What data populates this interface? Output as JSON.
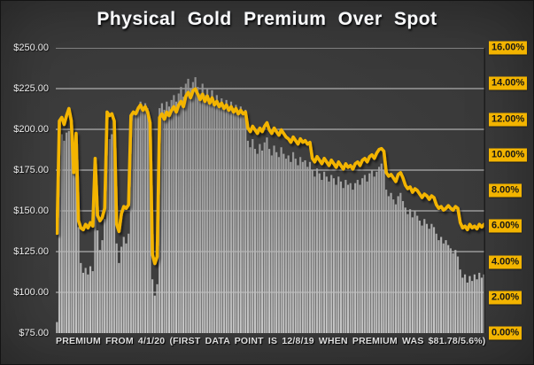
{
  "title": "Physical Gold Premium Over Spot",
  "caption": "PREMIUM FROM 4/1/20 (FIRST DATA POINT IS 12/8/19 WHEN PREMIUM WAS $81.78/5.6%)",
  "colors": {
    "line": "#F3B400",
    "label_chip_bg": "#F3B400",
    "label_chip_text": "#161616",
    "bar_top": "#8f8f8f",
    "bar_mid": "#adadad",
    "bar_bottom": "#cbcbcb",
    "gridline": "#e3e3e3",
    "axis_text": "#ececec",
    "title_text": "#fafafa",
    "right_axis_border": "#1c1c1c",
    "background": "#383838"
  },
  "left_axis": {
    "labels": [
      "$250.00",
      "$225.00",
      "$200.00",
      "$175.00",
      "$150.00",
      "$125.00",
      "$100.00",
      "$75.00"
    ],
    "min": 75,
    "max": 250,
    "step": 25
  },
  "right_axis": {
    "labels": [
      "16.00%",
      "14.00%",
      "12.00%",
      "10.00%",
      "8.00%",
      "6.00%",
      "4.00%",
      "2.00%",
      "0.00%"
    ],
    "min": 0,
    "max": 16,
    "step": 2
  },
  "chart_data": {
    "type": "combo",
    "title": "Physical Gold Premium Over Spot",
    "x_note": "daily observations from 4/1/20; first point is 12/8/19 ($81.78 / 5.6%)",
    "grid": true,
    "legend": "none",
    "series": [
      {
        "name": "premium_dollars",
        "type": "bar",
        "axis": "left",
        "axis_range": [
          75,
          250
        ],
        "values": [
          81.78,
          195,
          197,
          193,
          198,
          199,
          196,
          172,
          190,
          140,
          118,
          112,
          115,
          111,
          116,
          113,
          165,
          138,
          126,
          132,
          145,
          196,
          194,
          197,
          192,
          130,
          118,
          128,
          134,
          130,
          136,
          207,
          211,
          209,
          214,
          217,
          212,
          216,
          213,
          205,
          108,
          98,
          105,
          213,
          216,
          212,
          217,
          214,
          218,
          221,
          217,
          222,
          226,
          220,
          228,
          231,
          225,
          229,
          232,
          226,
          222,
          228,
          221,
          225,
          219,
          224,
          217,
          221,
          215,
          219,
          214,
          218,
          213,
          217,
          212,
          215,
          211,
          214,
          210,
          212,
          193,
          189,
          194,
          188,
          185,
          191,
          187,
          192,
          195,
          188,
          184,
          190,
          186,
          183,
          189,
          185,
          182,
          184,
          180,
          186,
          182,
          178,
          183,
          180,
          181,
          177,
          180,
          175,
          171,
          176,
          173,
          169,
          174,
          171,
          168,
          172,
          170,
          166,
          171,
          168,
          164,
          169,
          166,
          167,
          163,
          167,
          169,
          166,
          170,
          172,
          168,
          173,
          175,
          171,
          174,
          177,
          179,
          175,
          163,
          159,
          161,
          157,
          154,
          159,
          161,
          156,
          152,
          148,
          151,
          146,
          150,
          147,
          144,
          141,
          145,
          142,
          139,
          142,
          140,
          136,
          132,
          134,
          130,
          132,
          129,
          127,
          124,
          126,
          122,
          114,
          109,
          111,
          106,
          110,
          107,
          111,
          108,
          112,
          109,
          111
        ]
      },
      {
        "name": "premium_percent",
        "type": "line",
        "axis": "right",
        "axis_range": [
          0,
          16
        ],
        "values": [
          5.6,
          11.9,
          12.1,
          11.7,
          12.2,
          12.6,
          11.9,
          9.0,
          11.2,
          6.3,
          5.9,
          5.8,
          6.1,
          5.9,
          6.2,
          6.0,
          9.8,
          6.6,
          6.3,
          6.5,
          7.0,
          12.4,
          12.2,
          12.3,
          11.9,
          6.1,
          5.7,
          6.7,
          7.1,
          7.0,
          7.2,
          12.2,
          12.4,
          12.3,
          12.6,
          12.8,
          12.5,
          12.7,
          12.4,
          11.8,
          4.4,
          3.9,
          4.3,
          12.1,
          12.3,
          12.0,
          12.4,
          12.2,
          12.5,
          12.7,
          12.4,
          12.8,
          13.0,
          12.7,
          13.3,
          13.5,
          13.2,
          13.6,
          13.7,
          13.4,
          13.1,
          13.4,
          13.0,
          13.3,
          12.9,
          13.2,
          12.8,
          13.0,
          12.7,
          12.9,
          12.6,
          12.8,
          12.5,
          12.7,
          12.4,
          12.6,
          12.3,
          12.5,
          12.3,
          12.4,
          11.5,
          11.3,
          11.6,
          11.4,
          11.2,
          11.5,
          11.3,
          11.6,
          11.8,
          11.4,
          11.2,
          11.5,
          11.3,
          11.1,
          11.4,
          11.2,
          11.0,
          10.9,
          10.7,
          11.0,
          10.8,
          10.6,
          10.9,
          10.7,
          10.8,
          10.6,
          10.7,
          9.8,
          9.6,
          9.9,
          9.7,
          9.5,
          9.8,
          9.6,
          9.4,
          9.7,
          9.5,
          9.3,
          9.6,
          9.4,
          9.2,
          9.5,
          9.3,
          9.4,
          9.2,
          9.5,
          9.6,
          9.4,
          9.7,
          9.8,
          9.6,
          9.9,
          10.0,
          9.8,
          10.1,
          10.3,
          10.35,
          10.2,
          9.0,
          8.8,
          8.9,
          8.7,
          8.5,
          8.9,
          9.0,
          8.7,
          8.3,
          8.1,
          8.2,
          7.9,
          8.1,
          8.0,
          7.8,
          7.6,
          7.8,
          7.7,
          7.5,
          7.7,
          7.6,
          7.2,
          7.0,
          7.1,
          6.9,
          7.0,
          7.15,
          7.0,
          6.9,
          7.1,
          7.0,
          6.2,
          5.9,
          6.0,
          5.8,
          6.1,
          5.9,
          6.0,
          5.85,
          6.1,
          5.95,
          6.1
        ]
      }
    ]
  }
}
